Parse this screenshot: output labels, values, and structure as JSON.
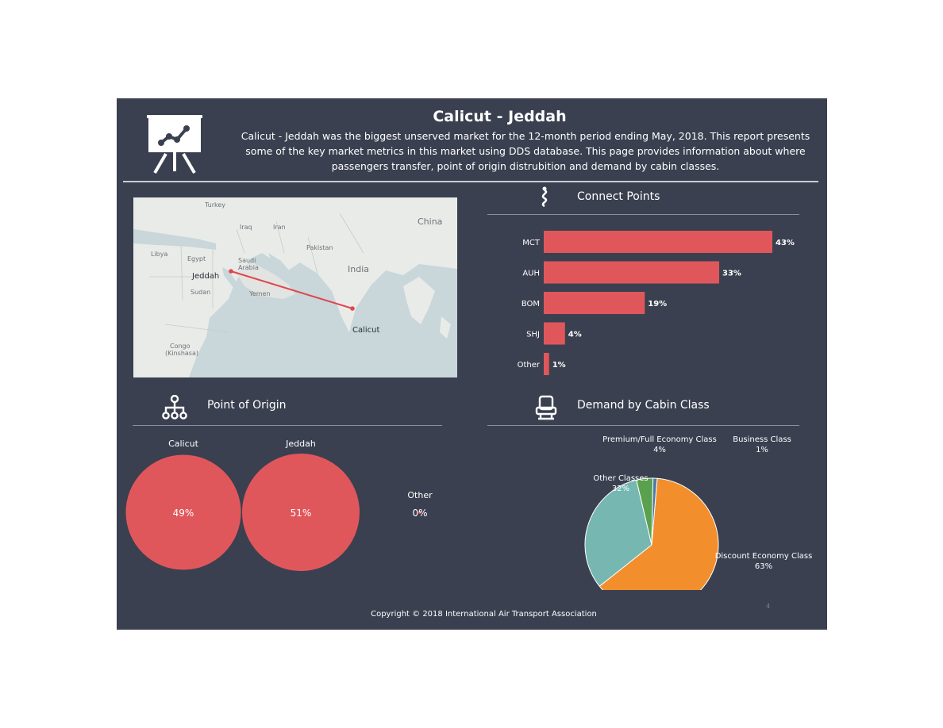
{
  "header": {
    "title": "Calicut - Jeddah",
    "description": "Calicut - Jeddah was the biggest unserved market for the 12-month period ending May, 2018. This report presents some of the key market metrics in this market using DDS database. This page provides information about where passengers transfer, point of origin distrubition and demand by cabin classes.",
    "icon": "presentation-chart-icon"
  },
  "map": {
    "labels": [
      "Turkey",
      "China",
      "Iraq",
      "Iran",
      "Pakistan",
      "Libya",
      "Egypt",
      "Saudi",
      "Arabia",
      "India",
      "Jeddah",
      "Sudan",
      "Yemen",
      "Calicut",
      "Congo",
      "(Kinshasa)"
    ],
    "route": {
      "from": "Jeddah",
      "to": "Calicut"
    },
    "route_color": "#e0474c"
  },
  "connect_points": {
    "title": "Connect Points",
    "icon": "route-icon"
  },
  "point_of_origin": {
    "title": "Point of Origin",
    "icon": "hierarchy-icon"
  },
  "cabin_class": {
    "title": "Demand by Cabin Class",
    "icon": "seat-icon"
  },
  "footer": {
    "copyright": "Copyright © 2018 International Air Transport Association",
    "page_number": "4"
  },
  "colors": {
    "background": "#3a4050",
    "bar": "#e0575b",
    "discount_economy": "#f28e2b",
    "other_classes": "#76b7b2",
    "premium_full_economy": "#59a14f",
    "business": "#4e79a7"
  },
  "chart_data": [
    {
      "type": "bar",
      "orientation": "horizontal",
      "categories": [
        "MCT",
        "AUH",
        "BOM",
        "SHJ",
        "Other"
      ],
      "values": [
        43,
        33,
        19,
        4,
        1
      ],
      "value_labels": [
        "43%",
        "33%",
        "19%",
        "4%",
        "1%"
      ],
      "unit": "%"
    },
    {
      "type": "bubble",
      "categories": [
        "Calicut",
        "Jeddah",
        "Other"
      ],
      "values": [
        49,
        51,
        0
      ],
      "value_labels": [
        "49%",
        "51%",
        "0%"
      ],
      "unit": "%"
    },
    {
      "type": "pie",
      "slices": [
        {
          "label": "Discount Economy Class",
          "value": 63,
          "value_label": "63%"
        },
        {
          "label": "Other Classes",
          "value": 32,
          "value_label": "32%"
        },
        {
          "label": "Premium/Full Economy Class",
          "value": 4,
          "value_label": "4%"
        },
        {
          "label": "Business Class",
          "value": 1,
          "value_label": "1%"
        }
      ],
      "unit": "%"
    }
  ]
}
